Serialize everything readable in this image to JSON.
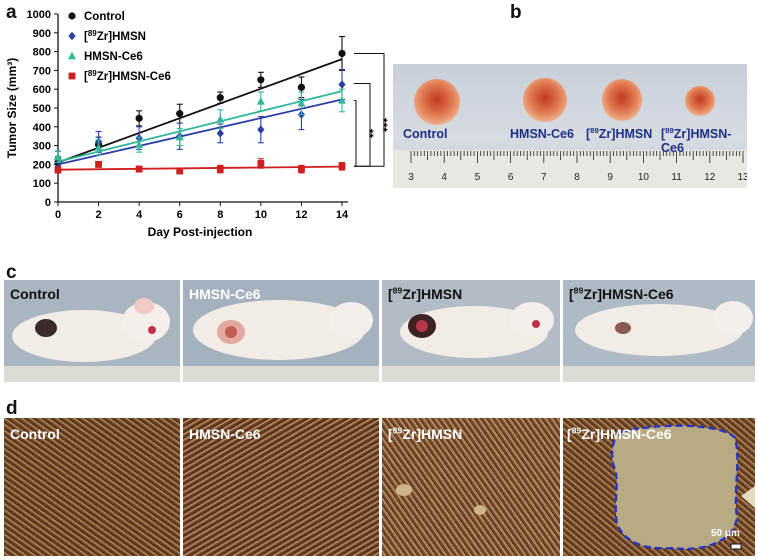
{
  "panels": {
    "a": "a",
    "b": "b",
    "c": "c",
    "d": "d"
  },
  "chart_data": {
    "type": "line",
    "xlabel": "Day Post-injection",
    "ylabel": "Tumor Size (mm³)",
    "x": [
      0,
      2,
      4,
      6,
      8,
      10,
      12,
      14
    ],
    "xlim": [
      0,
      14
    ],
    "xticks": [
      "0",
      "2",
      "4",
      "6",
      "8",
      "10",
      "12",
      "14"
    ],
    "ylim": [
      0,
      1000
    ],
    "yticks": [
      "0",
      "100",
      "200",
      "300",
      "400",
      "500",
      "600",
      "700",
      "800",
      "900",
      "1000"
    ],
    "series": [
      {
        "name": "Control",
        "sup": "",
        "rest": "Control",
        "color": "#111111",
        "marker": "circle",
        "values": [
          210,
          305,
          445,
          470,
          555,
          650,
          610,
          790
        ],
        "err": [
          30,
          40,
          40,
          50,
          30,
          40,
          55,
          90
        ],
        "fit": [
          210,
          760
        ]
      },
      {
        "name": "[89Zr]HMSN",
        "sup": "89",
        "rest": "Zr]HMSN",
        "color": "#2b3ea8",
        "marker": "diamond",
        "values": [
          230,
          320,
          340,
          350,
          365,
          385,
          465,
          625
        ],
        "err": [
          40,
          55,
          60,
          70,
          50,
          70,
          80,
          80
        ],
        "fit": [
          200,
          545
        ]
      },
      {
        "name": "HMSN-Ce6",
        "sup": "",
        "rest": "HMSN-Ce6",
        "color": "#2fb89a",
        "marker": "triangle",
        "values": [
          240,
          290,
          305,
          345,
          440,
          535,
          525,
          540
        ],
        "err": [
          30,
          40,
          40,
          45,
          50,
          50,
          60,
          60
        ],
        "fit": [
          215,
          590
        ]
      },
      {
        "name": "[89Zr]HMSN-Ce6",
        "sup": "89",
        "rest": "Zr]HMSN-Ce6",
        "color": "#d11e1e",
        "marker": "square",
        "values": [
          170,
          200,
          175,
          165,
          175,
          205,
          175,
          190
        ],
        "err": [
          15,
          15,
          15,
          15,
          20,
          25,
          20,
          20
        ],
        "fit": [
          172,
          188
        ]
      }
    ],
    "significance": [
      "***",
      "**",
      "***"
    ]
  },
  "panel_b": {
    "labels": [
      {
        "sup": "",
        "rest": "Control"
      },
      {
        "sup": "",
        "rest": "HMSN-Ce6"
      },
      {
        "sup": "89",
        "rest": "Zr]HMSN"
      },
      {
        "sup": "89",
        "rest": "Zr]HMSN-Ce6"
      }
    ],
    "ruler": [
      "3",
      "4",
      "5",
      "6",
      "7",
      "8",
      "9",
      "10",
      "11",
      "12",
      "13"
    ]
  },
  "panel_c": {
    "labels": [
      {
        "sup": "",
        "rest": "Control"
      },
      {
        "sup": "",
        "rest": "HMSN-Ce6"
      },
      {
        "sup": "89",
        "rest": "Zr]HMSN"
      },
      {
        "sup": "89",
        "rest": "Zr]HMSN-Ce6"
      }
    ]
  },
  "panel_d": {
    "labels": [
      {
        "sup": "",
        "rest": "Control"
      },
      {
        "sup": "",
        "rest": "HMSN-Ce6"
      },
      {
        "sup": "89",
        "rest": "Zr]HMSN"
      },
      {
        "sup": "89",
        "rest": "Zr]HMSN-Ce6"
      }
    ],
    "scalebar": "50 μm"
  }
}
